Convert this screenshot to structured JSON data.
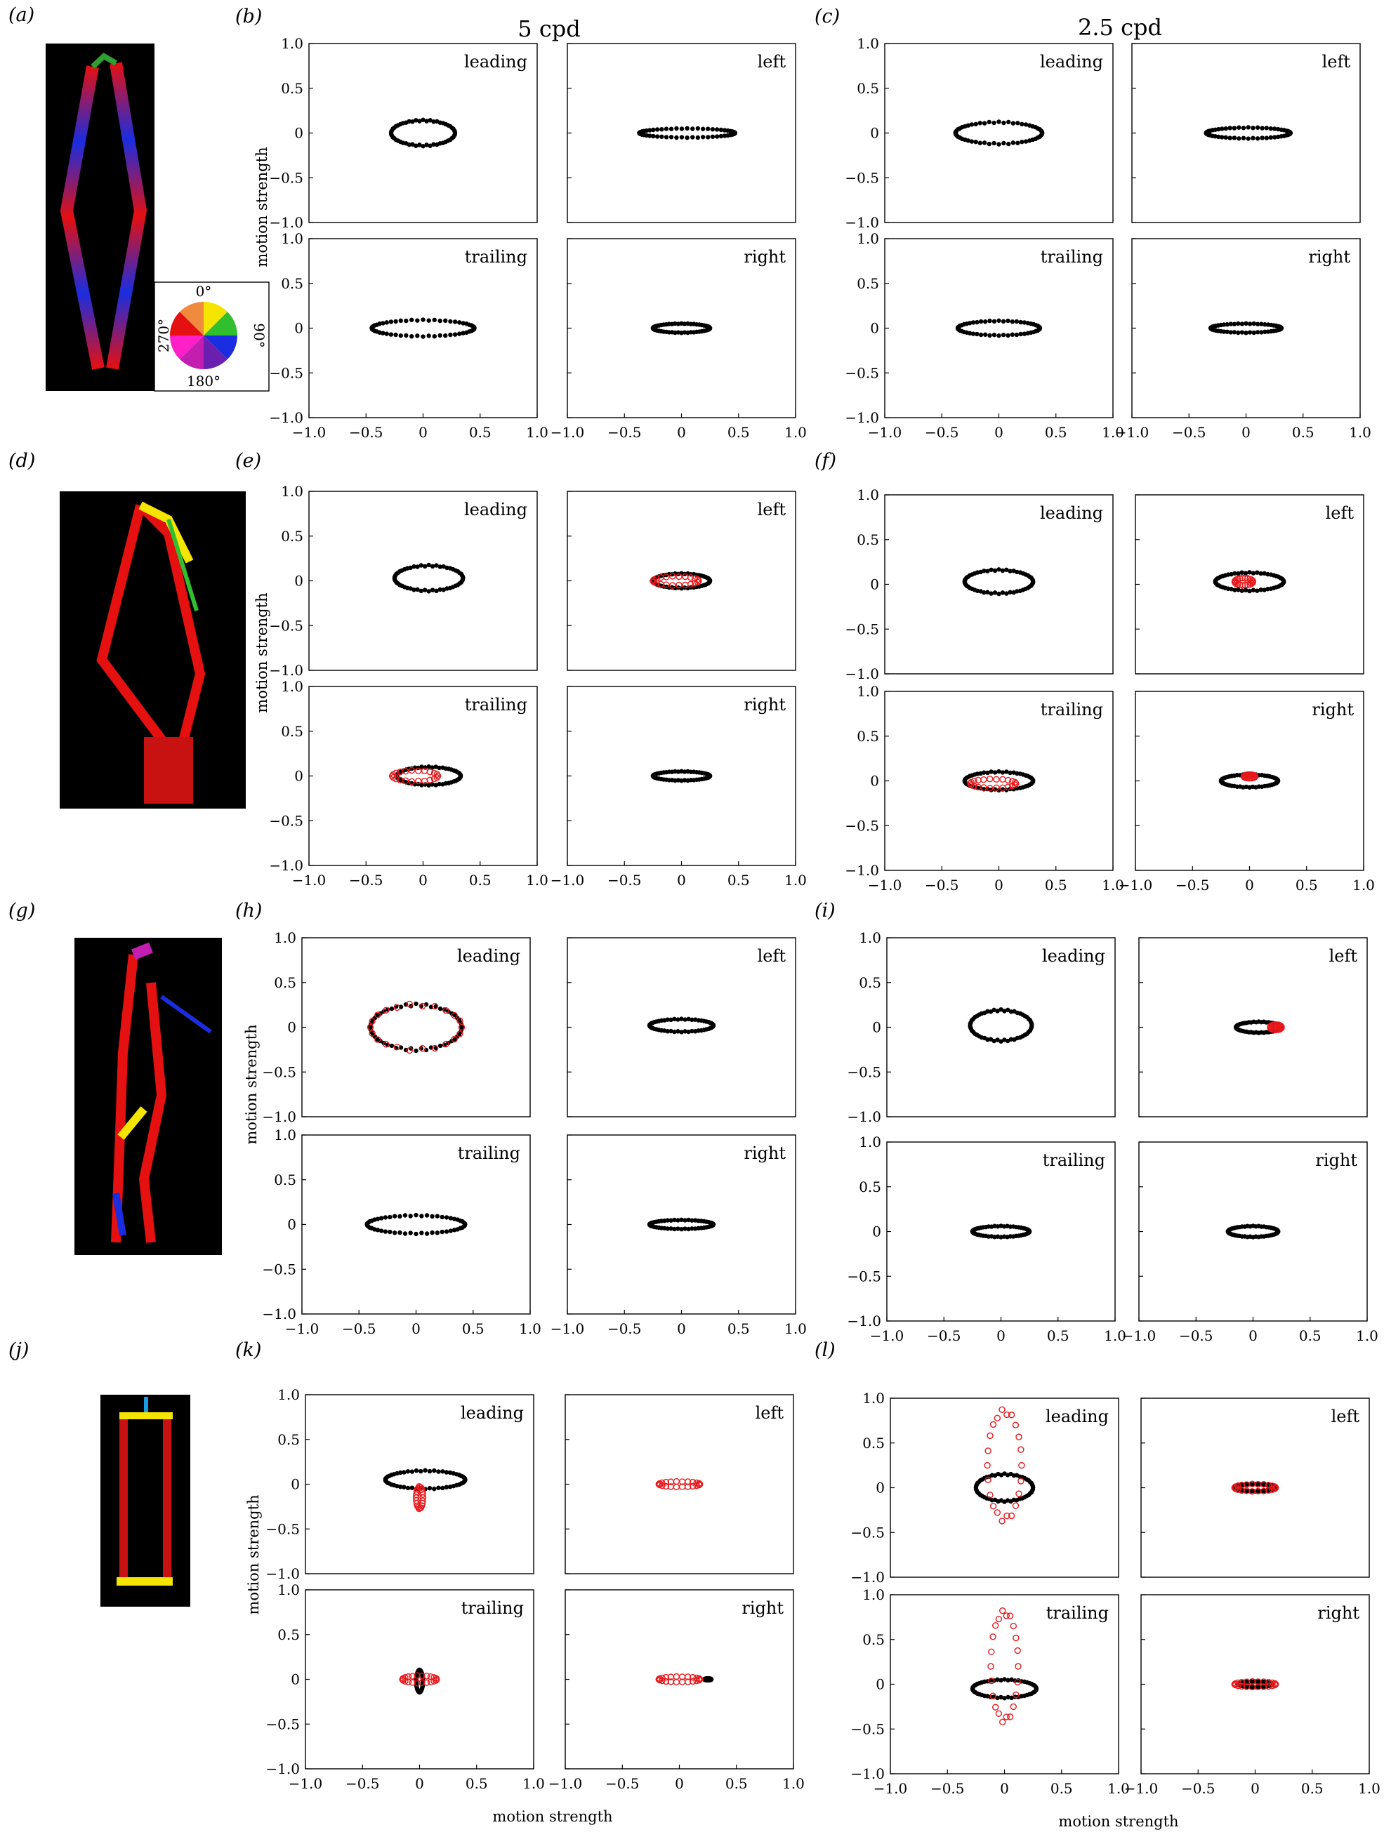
{
  "column_titles": [
    "5 cpd",
    "2.5 cpd"
  ],
  "panel_letters": [
    "(a)",
    "(b)",
    "(c)",
    "(d)",
    "(e)",
    "(f)",
    "(g)",
    "(h)",
    "(i)",
    "(j)",
    "(k)",
    "(l)"
  ],
  "colour_wheel": {
    "labels": [
      "0°",
      "90°",
      "180°",
      "270°"
    ]
  },
  "axis_label": "motion strength",
  "colors": {
    "filled_series": "#000000",
    "open_series": "#e8191c"
  },
  "image_panels": [
    {
      "name": "(a)",
      "kind": "orientation-coded stimulus image"
    },
    {
      "name": "(d)",
      "kind": "orientation-coded stimulus image"
    },
    {
      "name": "(g)",
      "kind": "orientation-coded stimulus image"
    },
    {
      "name": "(j)",
      "kind": "orientation-coded stimulus image"
    }
  ],
  "chart_data": [
    {
      "group": "(b)",
      "sf": "5 cpd",
      "type": "scatter",
      "xlim": [
        -1,
        1
      ],
      "ylim": [
        -1,
        1
      ],
      "xticks": [
        "−1.0",
        "−0.5",
        "0",
        "0.5",
        "1.0"
      ],
      "yticks": [
        "−1.0",
        "−0.5",
        "0",
        "0.5",
        "1.0"
      ],
      "subplots": [
        {
          "label": "leading",
          "filled": {
            "rx": 0.28,
            "ry": 0.14,
            "cx": 0,
            "cy": 0
          },
          "open": null
        },
        {
          "label": "left",
          "filled": {
            "rx": 0.42,
            "ry": 0.05,
            "cx": 0.05,
            "cy": 0
          },
          "open": null
        },
        {
          "label": "trailing",
          "filled": {
            "rx": 0.45,
            "ry": 0.09,
            "cx": 0,
            "cy": 0
          },
          "open": null
        },
        {
          "label": "right",
          "filled": {
            "rx": 0.25,
            "ry": 0.05,
            "cx": 0,
            "cy": 0
          },
          "open": null
        }
      ]
    },
    {
      "group": "(c)",
      "sf": "2.5 cpd",
      "type": "scatter",
      "xlim": [
        -1,
        1
      ],
      "ylim": [
        -1,
        1
      ],
      "xticks": [
        "−1.0",
        "−0.5",
        "0",
        "0.5",
        "1.0"
      ],
      "yticks": [
        "−1.0",
        "−0.5",
        "0",
        "0.5",
        "1.0"
      ],
      "subplots": [
        {
          "label": "leading",
          "filled": {
            "rx": 0.38,
            "ry": 0.12,
            "cx": 0,
            "cy": 0
          },
          "open": null
        },
        {
          "label": "left",
          "filled": {
            "rx": 0.37,
            "ry": 0.06,
            "cx": 0.02,
            "cy": 0
          },
          "open": null
        },
        {
          "label": "trailing",
          "filled": {
            "rx": 0.36,
            "ry": 0.08,
            "cx": 0,
            "cy": 0
          },
          "open": null
        },
        {
          "label": "right",
          "filled": {
            "rx": 0.31,
            "ry": 0.05,
            "cx": 0,
            "cy": 0
          },
          "open": null
        }
      ]
    },
    {
      "group": "(e)",
      "sf": "5 cpd",
      "type": "scatter",
      "xlim": [
        -1,
        1
      ],
      "ylim": [
        -1,
        1
      ],
      "xticks": [
        "−1.0",
        "−0.5",
        "0",
        "0.5",
        "1.0"
      ],
      "yticks": [
        "−1.0",
        "−0.5",
        "0",
        "0.5",
        "1.0"
      ],
      "subplots": [
        {
          "label": "leading",
          "filled": {
            "rx": 0.3,
            "ry": 0.14,
            "cx": 0.05,
            "cy": 0.03
          },
          "open": null
        },
        {
          "label": "left",
          "filled": {
            "rx": 0.25,
            "ry": 0.08,
            "cx": 0,
            "cy": 0
          },
          "open": {
            "rx": 0.2,
            "ry": 0.05,
            "cx": -0.05,
            "cy": 0
          }
        },
        {
          "label": "trailing",
          "filled": {
            "rx": 0.28,
            "ry": 0.1,
            "cx": 0.05,
            "cy": 0
          },
          "open": {
            "rx": 0.2,
            "ry": 0.06,
            "cx": -0.07,
            "cy": 0
          }
        },
        {
          "label": "right",
          "filled": {
            "rx": 0.25,
            "ry": 0.05,
            "cx": 0,
            "cy": 0
          },
          "open": null
        }
      ]
    },
    {
      "group": "(f)",
      "sf": "2.5 cpd",
      "type": "scatter",
      "xlim": [
        -1,
        1
      ],
      "ylim": [
        -1,
        1
      ],
      "xticks": [
        "−1.0",
        "−0.5",
        "0",
        "0.5",
        "1.0"
      ],
      "yticks": [
        "−1.0",
        "−0.5",
        "0",
        "0.5",
        "1.0"
      ],
      "subplots": [
        {
          "label": "leading",
          "filled": {
            "rx": 0.3,
            "ry": 0.13,
            "cx": 0,
            "cy": 0.03
          },
          "open": null
        },
        {
          "label": "left",
          "filled": {
            "rx": 0.3,
            "ry": 0.1,
            "cx": 0,
            "cy": 0.03
          },
          "open": {
            "rx": 0.08,
            "ry": 0.04,
            "cx": -0.05,
            "cy": 0.03
          }
        },
        {
          "label": "trailing",
          "filled": {
            "rx": 0.3,
            "ry": 0.1,
            "cx": 0,
            "cy": 0
          },
          "open": {
            "rx": 0.2,
            "ry": 0.05,
            "cx": -0.05,
            "cy": -0.03
          }
        },
        {
          "label": "right",
          "filled": {
            "rx": 0.25,
            "ry": 0.07,
            "cx": 0,
            "cy": 0
          },
          "open": {
            "rx": 0.05,
            "ry": 0.02,
            "cx": 0,
            "cy": 0.05
          }
        }
      ]
    },
    {
      "group": "(h)",
      "sf": "5 cpd",
      "type": "scatter",
      "xlim": [
        -1,
        1
      ],
      "ylim": [
        -1,
        1
      ],
      "xticks": [
        "−1.0",
        "−0.5",
        "0",
        "0.5",
        "1.0"
      ],
      "yticks": [
        "−1.0",
        "−0.5",
        "0",
        "0.5",
        "1.0"
      ],
      "subplots": [
        {
          "label": "leading",
          "filled": {
            "rx": 0.4,
            "ry": 0.25,
            "cx": 0,
            "cy": 0
          },
          "open": {
            "rx": 0.4,
            "ry": 0.25,
            "cx": 0,
            "cy": 0
          }
        },
        {
          "label": "left",
          "filled": {
            "rx": 0.28,
            "ry": 0.07,
            "cx": 0,
            "cy": 0.02
          },
          "open": null
        },
        {
          "label": "trailing",
          "filled": {
            "rx": 0.43,
            "ry": 0.1,
            "cx": 0,
            "cy": 0
          },
          "open": null
        },
        {
          "label": "right",
          "filled": {
            "rx": 0.28,
            "ry": 0.05,
            "cx": 0,
            "cy": 0
          },
          "open": null
        }
      ]
    },
    {
      "group": "(i)",
      "sf": "2.5 cpd",
      "type": "scatter",
      "xlim": [
        -1,
        1
      ],
      "ylim": [
        -1,
        1
      ],
      "xticks": [
        "−1.0",
        "−0.5",
        "0",
        "0.5",
        "1.0"
      ],
      "yticks": [
        "−1.0",
        "−0.5",
        "0",
        "0.5",
        "1.0"
      ],
      "subplots": [
        {
          "label": "leading",
          "filled": {
            "rx": 0.27,
            "ry": 0.17,
            "cx": 0,
            "cy": 0.02
          },
          "open": null
        },
        {
          "label": "left",
          "filled": {
            "rx": 0.2,
            "ry": 0.06,
            "cx": 0.05,
            "cy": 0
          },
          "open": {
            "rx": 0.05,
            "ry": 0.03,
            "cx": 0.2,
            "cy": 0
          }
        },
        {
          "label": "trailing",
          "filled": {
            "rx": 0.25,
            "ry": 0.06,
            "cx": 0,
            "cy": 0
          },
          "open": null
        },
        {
          "label": "right",
          "filled": {
            "rx": 0.22,
            "ry": 0.06,
            "cx": 0,
            "cy": 0
          },
          "open": null
        }
      ]
    },
    {
      "group": "(k)",
      "sf": "5 cpd",
      "type": "scatter",
      "xlim": [
        -1,
        1
      ],
      "ylim": [
        -1,
        1
      ],
      "xticks": [
        "−1.0",
        "−0.5",
        "0",
        "0.5",
        "1.0"
      ],
      "yticks": [
        "−1.0",
        "−0.5",
        "0",
        "0.5",
        "1.0"
      ],
      "subplots": [
        {
          "label": "leading",
          "filled": {
            "rx": 0.35,
            "ry": 0.1,
            "cx": 0.05,
            "cy": 0.05
          },
          "open": {
            "rx": 0.03,
            "ry": 0.12,
            "cx": 0,
            "cy": -0.15
          }
        },
        {
          "label": "left",
          "filled": null,
          "open": {
            "rx": 0.18,
            "ry": 0.03,
            "cx": 0,
            "cy": 0
          }
        },
        {
          "label": "trailing",
          "filled": {
            "rx": 0.03,
            "ry": 0.12,
            "cx": 0,
            "cy": -0.02
          },
          "open": {
            "rx": 0.15,
            "ry": 0.04,
            "cx": 0,
            "cy": 0
          }
        },
        {
          "label": "right",
          "filled": {
            "rx": 0.03,
            "ry": 0.01,
            "cx": 0.25,
            "cy": 0
          },
          "open": {
            "rx": 0.18,
            "ry": 0.03,
            "cx": 0,
            "cy": 0
          }
        }
      ]
    },
    {
      "group": "(l)",
      "sf": "2.5 cpd",
      "type": "scatter",
      "xlim": [
        -1,
        1
      ],
      "ylim": [
        -1,
        1
      ],
      "xticks": [
        "−1.0",
        "−0.5",
        "0",
        "0.5",
        "1.0"
      ],
      "yticks": [
        "−1.0",
        "−0.5",
        "0",
        "0.5",
        "1.0"
      ],
      "subplots": [
        {
          "label": "leading",
          "filled": {
            "rx": 0.25,
            "ry": 0.15,
            "cx": 0,
            "cy": 0
          },
          "open": {
            "rx": 0.15,
            "ry": 0.6,
            "cx": 0,
            "cy": 0.25
          }
        },
        {
          "label": "left",
          "filled": {
            "rx": 0.18,
            "ry": 0.04,
            "cx": 0,
            "cy": 0
          },
          "open": {
            "rx": 0.18,
            "ry": 0.04,
            "cx": 0,
            "cy": 0
          }
        },
        {
          "label": "trailing",
          "filled": {
            "rx": 0.28,
            "ry": 0.1,
            "cx": 0,
            "cy": -0.05
          },
          "open": {
            "rx": 0.12,
            "ry": 0.6,
            "cx": 0,
            "cy": 0.2
          }
        },
        {
          "label": "right",
          "filled": {
            "rx": 0.15,
            "ry": 0.03,
            "cx": 0,
            "cy": 0
          },
          "open": {
            "rx": 0.18,
            "ry": 0.03,
            "cx": 0,
            "cy": 0
          }
        }
      ]
    }
  ]
}
